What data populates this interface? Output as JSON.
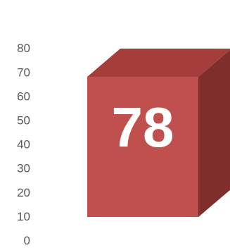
{
  "chart_data": {
    "type": "bar",
    "categories": [
      ""
    ],
    "values": [
      78
    ],
    "data_labels": [
      "78"
    ],
    "ylim": [
      0,
      80
    ],
    "yticks": [
      "0",
      "10",
      "20",
      "30",
      "40",
      "50",
      "60",
      "70",
      "80"
    ],
    "grid": false,
    "legend": "none",
    "bar_style": "3d-box",
    "colors": {
      "front": "#c0504d",
      "top": "#a53e3b",
      "side": "#7f2e2c",
      "tick_text": "#595959",
      "data_label": "#ffffff"
    }
  }
}
